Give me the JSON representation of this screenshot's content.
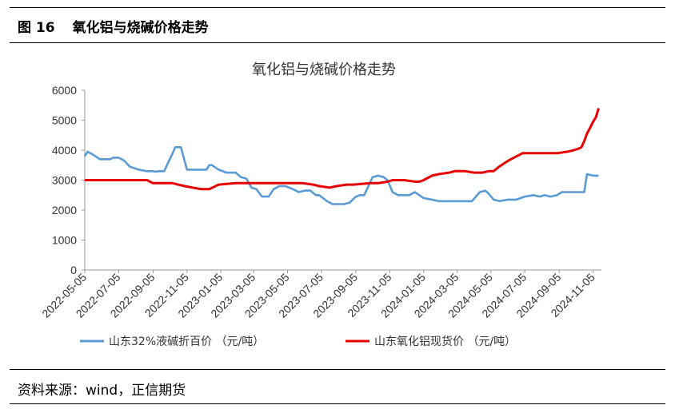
{
  "figure": {
    "number": "图 16",
    "title": "氧化铝与烧碱价格走势",
    "source": "资料来源：wind，正信期货"
  },
  "chart_data": {
    "type": "line",
    "title": "氧化铝与烧碱价格走势",
    "xlabel": "",
    "ylabel": "",
    "ylim": [
      0,
      6000
    ],
    "yticks": [
      "0",
      "1000",
      "2000",
      "3000",
      "4000",
      "5000",
      "6000"
    ],
    "xlim": [
      "2022-05-05",
      "2024-11-20"
    ],
    "xticks": [
      "2022-05-05",
      "2022-07-05",
      "2022-09-05",
      "2022-11-05",
      "2023-01-05",
      "2023-03-05",
      "2023-05-05",
      "2023-07-05",
      "2023-09-05",
      "2023-11-05",
      "2024-01-05",
      "2024-03-05",
      "2024-05-05",
      "2024-07-05",
      "2024-09-05",
      "2024-11-05"
    ],
    "grid": false,
    "legend_position": "bottom",
    "series": [
      {
        "name": "山东32%液碱折百价 （元/吨）",
        "color": "#5b9bd5",
        "x": [
          "2022-05-05",
          "2022-05-10",
          "2022-05-20",
          "2022-06-01",
          "2022-06-20",
          "2022-06-25",
          "2022-07-05",
          "2022-07-15",
          "2022-07-25",
          "2022-08-10",
          "2022-08-25",
          "2022-09-05",
          "2022-09-10",
          "2022-09-15",
          "2022-09-25",
          "2022-10-05",
          "2022-10-10",
          "2022-10-15",
          "2022-10-25",
          "2022-11-05",
          "2022-11-20",
          "2022-12-01",
          "2022-12-10",
          "2022-12-15",
          "2022-12-20",
          "2023-01-01",
          "2023-01-15",
          "2023-02-01",
          "2023-02-10",
          "2023-02-20",
          "2023-03-01",
          "2023-03-10",
          "2023-03-20",
          "2023-04-01",
          "2023-04-10",
          "2023-04-20",
          "2023-05-01",
          "2023-05-15",
          "2023-05-25",
          "2023-06-05",
          "2023-06-15",
          "2023-06-25",
          "2023-07-01",
          "2023-07-15",
          "2023-07-25",
          "2023-08-05",
          "2023-08-15",
          "2023-08-25",
          "2023-09-05",
          "2023-09-12",
          "2023-09-20",
          "2023-10-05",
          "2023-10-15",
          "2023-10-25",
          "2023-11-01",
          "2023-11-10",
          "2023-11-20",
          "2023-12-01",
          "2023-12-10",
          "2023-12-20",
          "2024-01-05",
          "2024-01-20",
          "2024-02-01",
          "2024-03-01",
          "2024-04-01",
          "2024-04-15",
          "2024-04-25",
          "2024-05-01",
          "2024-05-10",
          "2024-05-20",
          "2024-06-05",
          "2024-06-20",
          "2024-07-05",
          "2024-07-20",
          "2024-08-01",
          "2024-08-10",
          "2024-08-20",
          "2024-09-01",
          "2024-09-10",
          "2024-10-01",
          "2024-10-10",
          "2024-10-20",
          "2024-10-25",
          "2024-11-05",
          "2024-11-15"
        ],
        "values": [
          3800,
          3950,
          3850,
          3700,
          3700,
          3750,
          3750,
          3650,
          3450,
          3350,
          3300,
          3300,
          3280,
          3300,
          3300,
          3700,
          3900,
          4100,
          4100,
          3350,
          3350,
          3350,
          3350,
          3500,
          3500,
          3350,
          3250,
          3250,
          3100,
          3050,
          2750,
          2700,
          2450,
          2450,
          2700,
          2800,
          2800,
          2700,
          2600,
          2650,
          2650,
          2500,
          2500,
          2300,
          2200,
          2200,
          2200,
          2250,
          2450,
          2500,
          2500,
          3100,
          3150,
          3100,
          3000,
          2600,
          2500,
          2500,
          2500,
          2600,
          2400,
          2350,
          2300,
          2300,
          2300,
          2600,
          2650,
          2550,
          2350,
          2300,
          2350,
          2350,
          2450,
          2500,
          2450,
          2500,
          2450,
          2500,
          2600,
          2600,
          2600,
          2600,
          3200,
          3150,
          3150
        ]
      },
      {
        "name": "山东氧化铝现货价 （元/吨）",
        "color": "#e60000",
        "x": [
          "2022-05-05",
          "2022-05-20",
          "2022-06-01",
          "2022-07-01",
          "2022-08-01",
          "2022-08-25",
          "2022-09-05",
          "2022-10-01",
          "2022-10-10",
          "2022-10-20",
          "2022-11-01",
          "2022-11-15",
          "2022-12-01",
          "2022-12-15",
          "2023-01-01",
          "2023-02-01",
          "2023-03-01",
          "2023-04-01",
          "2023-05-01",
          "2023-05-20",
          "2023-06-01",
          "2023-06-20",
          "2023-07-01",
          "2023-07-20",
          "2023-08-01",
          "2023-08-20",
          "2023-09-01",
          "2023-10-01",
          "2023-10-15",
          "2023-11-01",
          "2023-11-10",
          "2023-12-01",
          "2023-12-20",
          "2023-12-28",
          "2024-01-05",
          "2024-01-20",
          "2024-02-01",
          "2024-02-20",
          "2024-03-01",
          "2024-03-20",
          "2024-04-05",
          "2024-04-20",
          "2024-05-01",
          "2024-05-10",
          "2024-05-20",
          "2024-06-01",
          "2024-06-10",
          "2024-07-01",
          "2024-08-01",
          "2024-08-20",
          "2024-09-01",
          "2024-09-20",
          "2024-10-01",
          "2024-10-10",
          "2024-10-15",
          "2024-10-20",
          "2024-10-25",
          "2024-11-01",
          "2024-11-05",
          "2024-11-10",
          "2024-11-15"
        ],
        "values": [
          3000,
          3000,
          3000,
          3000,
          3000,
          3000,
          2900,
          2900,
          2900,
          2850,
          2800,
          2750,
          2700,
          2700,
          2850,
          2900,
          2900,
          2900,
          2900,
          2900,
          2900,
          2850,
          2800,
          2750,
          2800,
          2850,
          2850,
          2900,
          2900,
          2950,
          3000,
          3000,
          2950,
          2950,
          3000,
          3150,
          3200,
          3250,
          3300,
          3300,
          3250,
          3250,
          3300,
          3300,
          3450,
          3600,
          3700,
          3900,
          3900,
          3900,
          3900,
          3950,
          4000,
          4050,
          4100,
          4300,
          4550,
          4800,
          4950,
          5100,
          5400
        ]
      }
    ]
  }
}
